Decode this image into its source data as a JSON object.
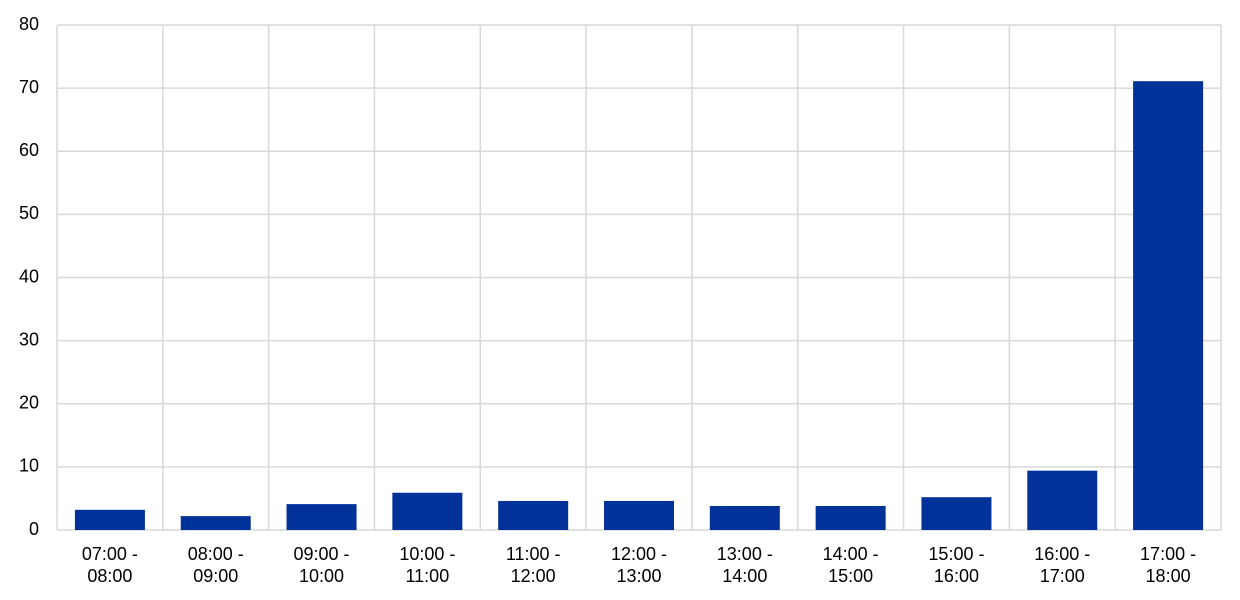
{
  "chart_data": {
    "type": "bar",
    "categories": [
      "07:00 - 08:00",
      "08:00 - 09:00",
      "09:00 - 10:00",
      "10:00 - 11:00",
      "11:00 - 12:00",
      "12:00 - 13:00",
      "13:00 - 14:00",
      "14:00 - 15:00",
      "15:00 - 16:00",
      "16:00 - 17:00",
      "17:00 - 18:00"
    ],
    "values": [
      3.2,
      2.2,
      4.1,
      5.9,
      4.6,
      4.6,
      3.8,
      3.8,
      5.2,
      9.4,
      71.1
    ],
    "color": "#003299",
    "ylim": [
      0,
      80
    ],
    "yticks": [
      0,
      10,
      20,
      30,
      40,
      50,
      60,
      70,
      80
    ],
    "grid": true
  }
}
